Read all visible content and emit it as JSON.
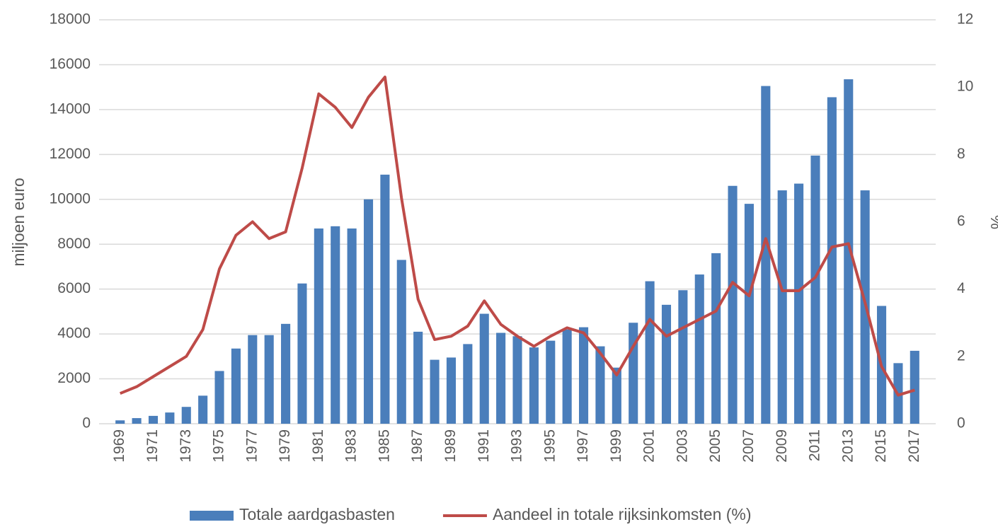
{
  "chart_data": {
    "type": "bar+line",
    "y_label": "miljoen euro",
    "y2_label": "%",
    "categories": [
      "1969",
      null,
      "1971",
      null,
      "1973",
      null,
      "1975",
      null,
      "1977",
      null,
      "1979",
      null,
      "1981",
      null,
      "1983",
      null,
      "1985",
      null,
      "1987",
      null,
      "1989",
      null,
      "1991",
      null,
      "1993",
      null,
      "1995",
      null,
      "1997",
      null,
      "1999",
      null,
      "2001",
      null,
      "2003",
      null,
      "2005",
      null,
      "2007",
      null,
      "2009",
      null,
      "2011",
      null,
      "2013",
      null,
      "2015",
      null,
      "2017"
    ],
    "series": [
      {
        "name": "Totale aardgasbasten",
        "type": "bar",
        "color": "#4a7ebb",
        "axis": "y",
        "values": [
          150,
          250,
          350,
          500,
          750,
          1250,
          2350,
          3350,
          3950,
          3950,
          4450,
          6250,
          8700,
          8800,
          8700,
          10000,
          11100,
          7300,
          4100,
          2850,
          2950,
          3550,
          4900,
          4050,
          3900,
          3400,
          3700,
          4200,
          4300,
          3450,
          2500,
          4500,
          6350,
          5300,
          5950,
          6650,
          7600,
          10600,
          9800,
          15050,
          10400,
          10700,
          11950,
          14550,
          15350,
          10400,
          5250,
          2700,
          3250
        ]
      },
      {
        "name": "Aandeel in totale rijksinkomsten (%)",
        "type": "line",
        "color": "#be4b48",
        "axis": "y2",
        "values": [
          0.9,
          1.1,
          1.4,
          1.7,
          2.0,
          2.8,
          4.6,
          5.6,
          6.0,
          5.5,
          5.7,
          7.6,
          9.8,
          9.4,
          8.8,
          9.7,
          10.3,
          6.7,
          3.7,
          2.5,
          2.6,
          2.9,
          3.65,
          2.95,
          2.6,
          2.3,
          2.6,
          2.85,
          2.7,
          2.1,
          1.45,
          2.3,
          3.1,
          2.6,
          2.85,
          3.1,
          3.35,
          4.2,
          3.8,
          5.5,
          3.95,
          3.95,
          4.35,
          5.25,
          5.35,
          3.6,
          1.7,
          0.85,
          1.0
        ]
      }
    ],
    "ylim": [
      0,
      18000
    ],
    "yticks": [
      0,
      2000,
      4000,
      6000,
      8000,
      10000,
      12000,
      14000,
      16000,
      18000
    ],
    "y2lim": [
      0,
      12
    ],
    "y2ticks": [
      0,
      2,
      4,
      6,
      8,
      10,
      12
    ],
    "grid": true,
    "legend": "bottom"
  }
}
